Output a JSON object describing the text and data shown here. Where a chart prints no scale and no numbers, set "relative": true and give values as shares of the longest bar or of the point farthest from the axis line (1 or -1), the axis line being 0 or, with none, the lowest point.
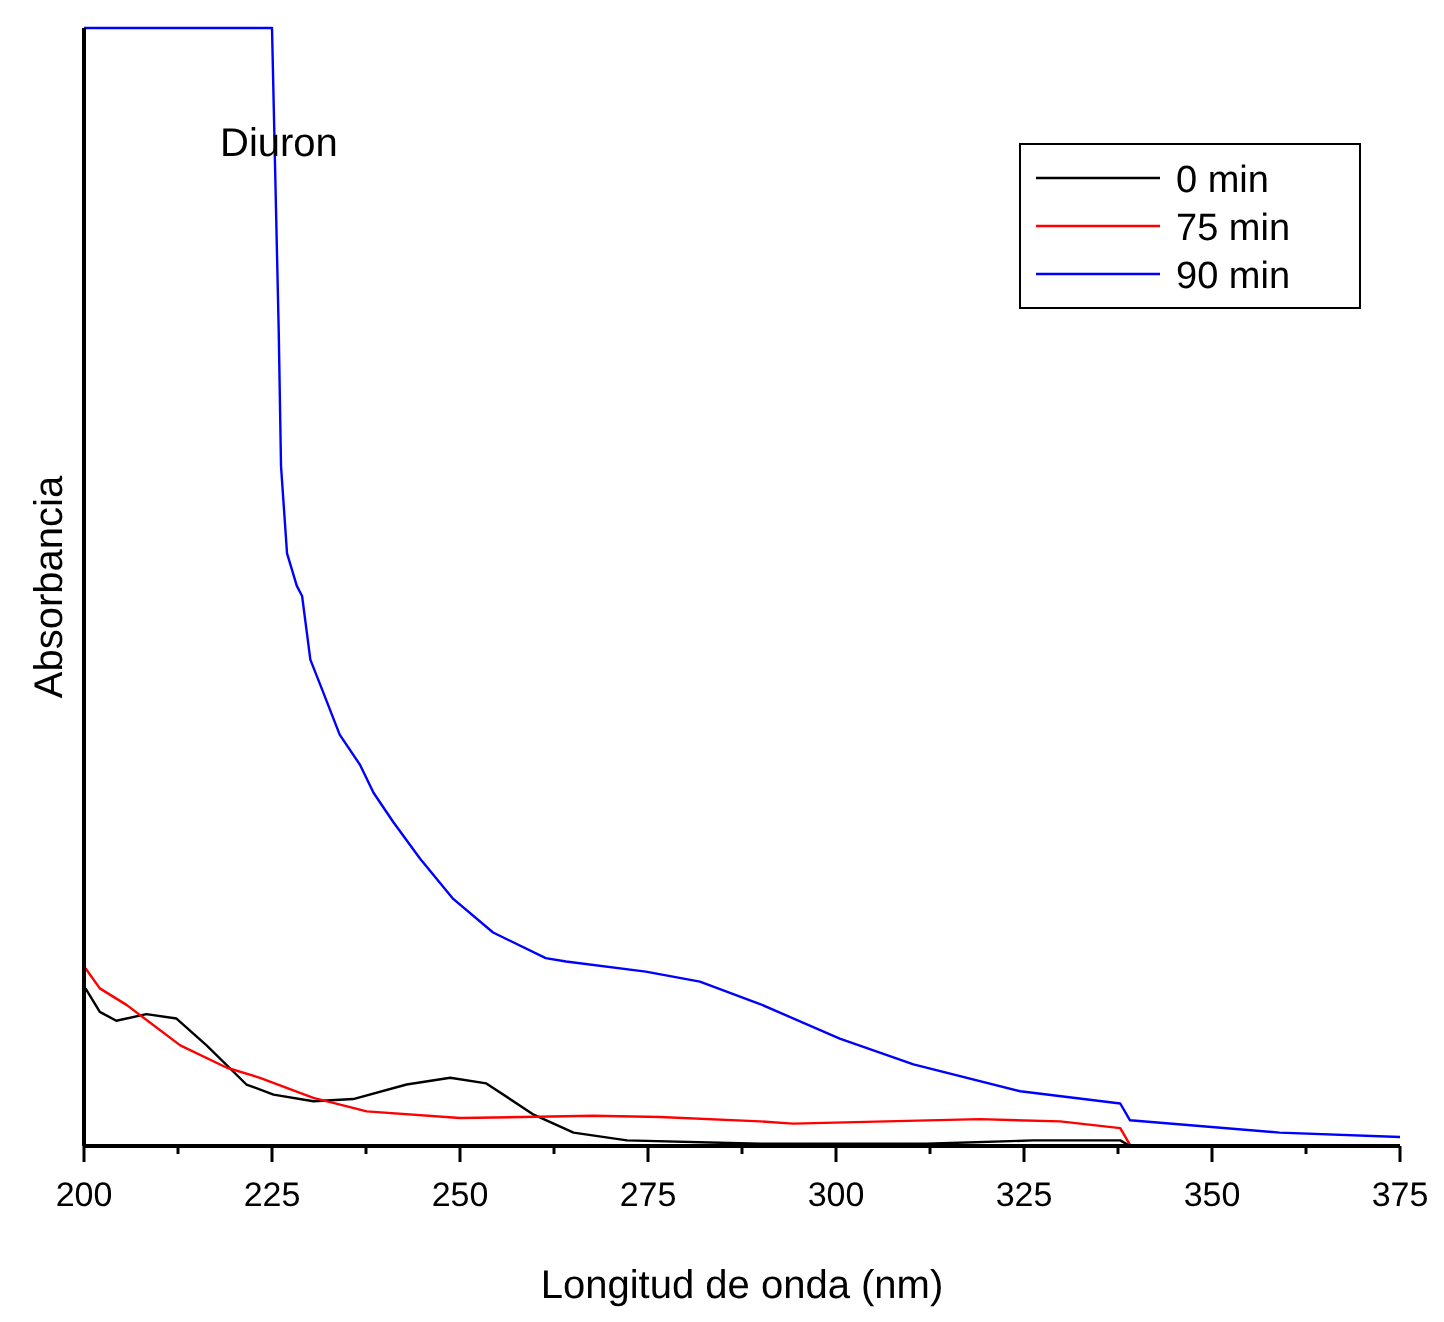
{
  "chart_data": {
    "type": "line",
    "relative": true,
    "xlabel": "Longitud de onda (nm)",
    "ylabel": "Absorbancia",
    "annotations": [
      "Diuron"
    ],
    "xlim": [
      200,
      375
    ],
    "xticks": [
      200,
      {
        "value": 212.5,
        "label": null
      },
      225,
      {
        "value": 237.5,
        "label": null
      },
      250,
      {
        "value": 262.5,
        "label": null
      },
      275,
      {
        "value": 287.5,
        "label": null
      },
      300,
      {
        "value": 312.5,
        "label": null
      },
      325,
      {
        "value": 337.5,
        "label": null
      },
      350,
      {
        "value": 362.5,
        "label": null
      },
      375
    ],
    "legend": "top right",
    "grid": false,
    "line_style": "solid",
    "series": [
      {
        "name": "0 min",
        "color": "#000000",
        "x": [
          200.2,
          202.1,
          204.3,
          208.3,
          212.3,
          216.3,
          221.6,
          225.2,
          230.5,
          235.8,
          242.9,
          248.7,
          253.5,
          259.8,
          265.1,
          272.2,
          289.9,
          312,
          326.2,
          337.8,
          339.1,
          340
        ],
        "values": [
          0.141,
          0.12,
          0.112,
          0.118,
          0.114,
          0.09,
          0.055,
          0.046,
          0.04,
          0.042,
          0.055,
          0.061,
          0.056,
          0.028,
          0.012,
          0.005,
          0.002,
          0.002,
          0.005,
          0.005,
          0,
          0
        ]
      },
      {
        "name": "75 min",
        "color": "#ff0000",
        "x": [
          200.2,
          202.1,
          205.7,
          212.8,
          219,
          223.4,
          230.5,
          237.6,
          250,
          267.7,
          276.6,
          289.9,
          294.3,
          319.1,
          329.8,
          337.8,
          339.1,
          358.2
        ],
        "values": [
          0.159,
          0.141,
          0.126,
          0.09,
          0.07,
          0.061,
          0.043,
          0.031,
          0.025,
          0.027,
          0.026,
          0.022,
          0.02,
          0.024,
          0.022,
          0.016,
          0.001,
          0
        ]
      },
      {
        "name": "90 min",
        "color": "#0000ff",
        "x": [
          200,
          225,
          225.9,
          226.2,
          227,
          228.3,
          229,
          230.1,
          231.8,
          234,
          236.7,
          238.5,
          241.1,
          244.7,
          249.1,
          254.4,
          261.4,
          264.1,
          274.7,
          281.9,
          289.9,
          300.5,
          310.3,
          324.5,
          337.8,
          339.1,
          359,
          375
        ],
        "values": [
          1,
          1,
          0.727,
          0.608,
          0.53,
          0.501,
          0.492,
          0.435,
          0.406,
          0.368,
          0.341,
          0.316,
          0.29,
          0.257,
          0.221,
          0.191,
          0.168,
          0.165,
          0.156,
          0.147,
          0.127,
          0.096,
          0.073,
          0.049,
          0.038,
          0.023,
          0.012,
          0.008
        ]
      }
    ]
  }
}
